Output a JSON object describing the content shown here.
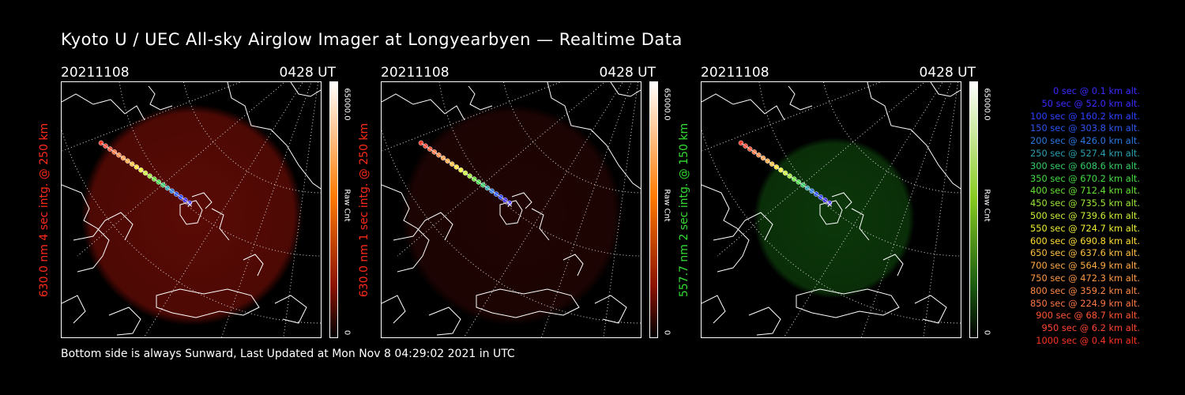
{
  "title": "Kyoto U / UEC All-sky Airglow Imager at Longyearbyen — Realtime Data",
  "footer": "Bottom side is always Sunward, Last Updated at Mon Nov  8 04:29:02 2021 in UTC",
  "panels": [
    {
      "date": "20211108",
      "time": "0428 UT",
      "label": "630.0 nm 4 sec intg. @ 250 km",
      "label_color": "#ff2a1a",
      "cbar_max": "65000.0",
      "cbar_unit": "Raw Cnt",
      "cbar_min": "0",
      "glow_color": "#6a0c06",
      "glow_opacity": 0.85,
      "cbar_top": "#ffffff",
      "cbar_mid": "#ff7a00",
      "cbar_low": "#8a1200"
    },
    {
      "date": "20211108",
      "time": "0428 UT",
      "label": "630.0 nm 1 sec intg. @ 250 km",
      "label_color": "#ff2a1a",
      "cbar_max": "65000.0",
      "cbar_unit": "Raw Cnt",
      "cbar_min": "0",
      "glow_color": "#3a0806",
      "glow_opacity": 0.55,
      "cbar_top": "#ffffff",
      "cbar_mid": "#ff7a00",
      "cbar_low": "#8a1200"
    },
    {
      "date": "20211108",
      "time": "0428 UT",
      "label": "557.7 nm 2 sec intg. @ 150 km",
      "label_color": "#33dd33",
      "cbar_max": "65000.0",
      "cbar_unit": "Raw Cnt",
      "cbar_min": "0",
      "glow_color": "#0d3d0b",
      "glow_opacity": 0.9,
      "cbar_top": "#ffffff",
      "cbar_mid": "#88cc22",
      "cbar_low": "#1a5a10"
    }
  ],
  "legend": [
    {
      "text": "0 sec @   0.1 km alt.",
      "color": "#3a2aff"
    },
    {
      "text": "50 sec @  52.0 km alt.",
      "color": "#3a2aff"
    },
    {
      "text": "100 sec @ 160.2 km alt.",
      "color": "#2a40ff"
    },
    {
      "text": "150 sec @ 303.8 km alt.",
      "color": "#2a55f0"
    },
    {
      "text": "200 sec @ 426.0 km alt.",
      "color": "#2a77e0"
    },
    {
      "text": "250 sec @ 527.4 km alt.",
      "color": "#2aa0b0"
    },
    {
      "text": "300 sec @ 608.6 km alt.",
      "color": "#33cc66"
    },
    {
      "text": "350 sec @ 670.2 km alt.",
      "color": "#44dd44"
    },
    {
      "text": "400 sec @ 712.4 km alt.",
      "color": "#66e033"
    },
    {
      "text": "450 sec @ 735.5 km alt.",
      "color": "#99e833"
    },
    {
      "text": "500 sec @ 739.6 km alt.",
      "color": "#c8ee33"
    },
    {
      "text": "550 sec @ 724.7 km alt.",
      "color": "#eeee33"
    },
    {
      "text": "600 sec @ 690.8 km alt.",
      "color": "#ffdd33"
    },
    {
      "text": "650 sec @ 637.6 km alt.",
      "color": "#ffc040"
    },
    {
      "text": "700 sec @ 564.9 km alt.",
      "color": "#ffaa44"
    },
    {
      "text": "750 sec @ 472.3 km alt.",
      "color": "#ff9944"
    },
    {
      "text": "800 sec @ 359.2 km alt.",
      "color": "#ff8844"
    },
    {
      "text": "850 sec @ 224.9 km alt.",
      "color": "#ff7744"
    },
    {
      "text": "900 sec @  68.7 km alt.",
      "color": "#ff5533"
    },
    {
      "text": "950 sec @   6.2 km alt.",
      "color": "#ff4433"
    },
    {
      "text": "1000 sec @   0.4 km alt.",
      "color": "#ff3322"
    }
  ]
}
